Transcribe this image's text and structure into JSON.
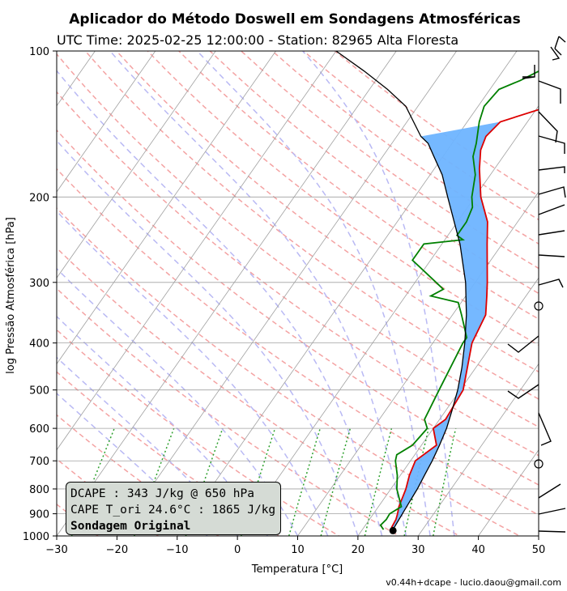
{
  "chart_data": {
    "type": "line",
    "title": "Aplicador do Método Doswell em Sondagens Atmosféricas",
    "subtitle": "UTC Time: 2025-02-25 12:00:00 - Station: 82965 Alta Floresta",
    "xlabel": "Temperatura [°C]",
    "ylabel": "log Pressão Atmosférica [hPa]",
    "xlim": [
      -30,
      50
    ],
    "ylim": [
      1000,
      100
    ],
    "y_scale": "log",
    "x_ticks": [
      -30,
      -20,
      -10,
      0,
      10,
      20,
      30,
      40,
      50
    ],
    "x_tick_labels": [
      "−30",
      "−20",
      "−10",
      "0",
      "10",
      "20",
      "30",
      "40",
      "50"
    ],
    "y_ticks": [
      100,
      200,
      300,
      400,
      500,
      600,
      700,
      800,
      900,
      1000
    ],
    "y_tick_labels": [
      "100",
      "200",
      "300",
      "400",
      "500",
      "600",
      "700",
      "800",
      "900",
      "1000"
    ],
    "grid": true,
    "series": [
      {
        "name": "",
        "role": "temperature",
        "color": "#dd0000",
        "points": [
          [
            25.2,
            975
          ],
          [
            24.6,
            960
          ],
          [
            24.4,
            925
          ],
          [
            24.0,
            900
          ],
          [
            23.4,
            870
          ],
          [
            22.5,
            800
          ],
          [
            21.5,
            750
          ],
          [
            20.8,
            700
          ],
          [
            22.5,
            650
          ],
          [
            20.0,
            600
          ],
          [
            21.0,
            575
          ],
          [
            20.5,
            500
          ],
          [
            16.5,
            400
          ],
          [
            15.5,
            350
          ],
          [
            13.5,
            320
          ],
          [
            12.0,
            300
          ],
          [
            7.5,
            250
          ],
          [
            5.0,
            225
          ],
          [
            1.0,
            200
          ],
          [
            -2.5,
            175
          ],
          [
            -4.5,
            160
          ],
          [
            -5.2,
            150
          ],
          [
            -4.5,
            140
          ],
          [
            1.8,
            130
          ],
          [
            2.6,
            120
          ],
          [
            2.5,
            110
          ],
          [
            2.5,
            100
          ]
        ]
      },
      {
        "name": "",
        "role": "dewpoint",
        "color": "#008000",
        "points": [
          [
            23.5,
            970
          ],
          [
            22.5,
            950
          ],
          [
            22.8,
            925
          ],
          [
            22.7,
            900
          ],
          [
            23.8,
            870
          ],
          [
            21.0,
            800
          ],
          [
            19.5,
            750
          ],
          [
            17.5,
            700
          ],
          [
            17.0,
            680
          ],
          [
            18.5,
            650
          ],
          [
            19.0,
            600
          ],
          [
            17.5,
            575
          ],
          [
            16.5,
            500
          ],
          [
            15.0,
            400
          ],
          [
            15.0,
            390
          ],
          [
            11.5,
            350
          ],
          [
            9.5,
            330
          ],
          [
            4.2,
            320
          ],
          [
            5.5,
            310
          ],
          [
            3.5,
            300
          ],
          [
            -3.0,
            270
          ],
          [
            -3.0,
            260
          ],
          [
            -3.0,
            250
          ],
          [
            3.0,
            245
          ],
          [
            1.5,
            240
          ],
          [
            1.5,
            225
          ],
          [
            0.8,
            210
          ],
          [
            -0.5,
            200
          ],
          [
            -2.5,
            180
          ],
          [
            -5.0,
            165
          ],
          [
            -6.0,
            155
          ],
          [
            -8.0,
            140
          ],
          [
            -9.0,
            130
          ],
          [
            -8.5,
            120
          ],
          [
            -6.0,
            115
          ],
          [
            -4.0,
            110
          ],
          [
            -4.0,
            100
          ]
        ]
      },
      {
        "name": "",
        "role": "parcel",
        "color": "#000000",
        "points": [
          [
            25.1,
            975
          ],
          [
            25.0,
            950
          ],
          [
            24.8,
            900
          ],
          [
            24.6,
            850
          ],
          [
            24.4,
            800
          ],
          [
            24.0,
            750
          ],
          [
            23.6,
            700
          ],
          [
            23.0,
            650
          ],
          [
            22.2,
            600
          ],
          [
            21.0,
            550
          ],
          [
            19.6,
            500
          ],
          [
            17.7,
            450
          ],
          [
            15.3,
            400
          ],
          [
            12.3,
            350
          ],
          [
            8.4,
            300
          ],
          [
            3.0,
            250
          ],
          [
            -4.5,
            200
          ],
          [
            -8.0,
            180
          ],
          [
            -11.5,
            165
          ],
          [
            -14.0,
            155
          ],
          [
            -16.0,
            150
          ],
          [
            -22.0,
            130
          ],
          [
            -27.0,
            120
          ],
          [
            -33.0,
            110
          ],
          [
            -40.0,
            100
          ]
        ]
      }
    ],
    "cape_fill_color": "#6eb4ff",
    "surface_point": {
      "temperature": 25.2,
      "pressure": 975
    },
    "wind_barbs": true,
    "background_lines": [
      "dry adiabats (red dashed)",
      "moist adiabats (blue dashed)",
      "mixing ratio (green dotted)",
      "isotherms (gray)"
    ]
  },
  "info_box": {
    "line1": "DCAPE : 343 J/kg @ 650 hPa",
    "line2": "CAPE T_ori 24.6°C : 1865 J/kg",
    "line3": "Sondagem Original"
  },
  "footer": "v0.44h+dcape  -  lucio.daou@gmail.com"
}
